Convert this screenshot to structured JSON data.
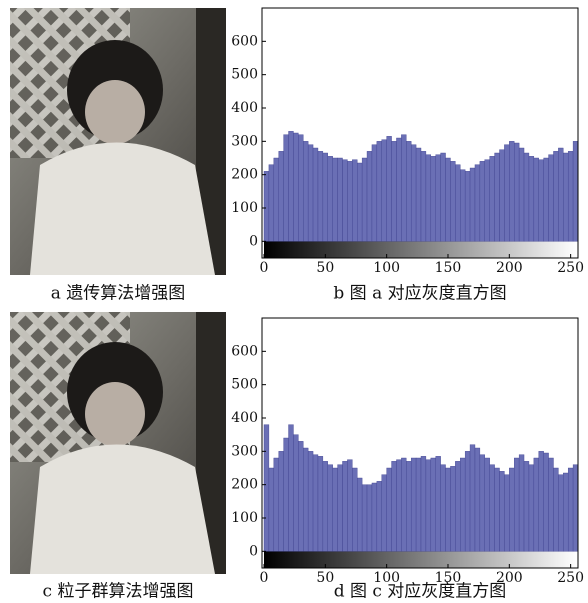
{
  "images": [
    {
      "caption": "a 遗传算法增强图"
    },
    {
      "caption": "c 粒子群算法增强图"
    }
  ],
  "chart_data": [
    {
      "type": "histogram",
      "caption": "b 图 a 对应灰度直方图",
      "color": "#6a6fb5",
      "bins": [
        0,
        4,
        8,
        12,
        16,
        20,
        24,
        28,
        32,
        36,
        40,
        44,
        48,
        52,
        56,
        60,
        64,
        68,
        72,
        76,
        80,
        84,
        88,
        92,
        96,
        100,
        104,
        108,
        112,
        116,
        120,
        124,
        128,
        132,
        136,
        140,
        144,
        148,
        152,
        156,
        160,
        164,
        168,
        172,
        176,
        180,
        184,
        188,
        192,
        196,
        200,
        204,
        208,
        212,
        216,
        220,
        224,
        228,
        232,
        236,
        240,
        244,
        248,
        252,
        256
      ],
      "values": [
        210,
        230,
        250,
        270,
        320,
        330,
        325,
        320,
        300,
        290,
        280,
        270,
        265,
        255,
        250,
        250,
        245,
        240,
        245,
        235,
        250,
        270,
        290,
        300,
        305,
        315,
        300,
        310,
        320,
        300,
        290,
        280,
        270,
        260,
        255,
        260,
        265,
        250,
        240,
        230,
        215,
        210,
        220,
        230,
        240,
        245,
        255,
        265,
        275,
        290,
        300,
        295,
        280,
        265,
        255,
        250,
        245,
        250,
        260,
        270,
        280,
        265,
        270,
        300
      ],
      "xlim": [
        0,
        256
      ],
      "ylim": [
        -50,
        700
      ],
      "xticks": [
        0,
        50,
        100,
        150,
        200,
        250
      ],
      "yticks": [
        0,
        100,
        200,
        300,
        400,
        500,
        600
      ]
    },
    {
      "type": "histogram",
      "caption": "d 图 c 对应灰度直方图",
      "color": "#6a6fb5",
      "bins": [
        0,
        4,
        8,
        12,
        16,
        20,
        24,
        28,
        32,
        36,
        40,
        44,
        48,
        52,
        56,
        60,
        64,
        68,
        72,
        76,
        80,
        84,
        88,
        92,
        96,
        100,
        104,
        108,
        112,
        116,
        120,
        124,
        128,
        132,
        136,
        140,
        144,
        148,
        152,
        156,
        160,
        164,
        168,
        172,
        176,
        180,
        184,
        188,
        192,
        196,
        200,
        204,
        208,
        212,
        216,
        220,
        224,
        228,
        232,
        236,
        240,
        244,
        248,
        252,
        256
      ],
      "values": [
        380,
        250,
        280,
        300,
        340,
        380,
        350,
        330,
        310,
        300,
        290,
        285,
        270,
        260,
        250,
        260,
        270,
        275,
        250,
        220,
        200,
        200,
        205,
        210,
        230,
        250,
        270,
        275,
        280,
        270,
        280,
        280,
        285,
        275,
        280,
        285,
        260,
        250,
        255,
        270,
        280,
        300,
        320,
        310,
        290,
        280,
        260,
        250,
        240,
        230,
        250,
        280,
        290,
        270,
        260,
        280,
        300,
        295,
        280,
        250,
        230,
        235,
        250,
        260
      ],
      "xlim": [
        0,
        256
      ],
      "ylim": [
        -50,
        700
      ],
      "xticks": [
        0,
        50,
        100,
        150,
        200,
        250
      ],
      "yticks": [
        0,
        100,
        200,
        300,
        400,
        500,
        600
      ]
    }
  ]
}
